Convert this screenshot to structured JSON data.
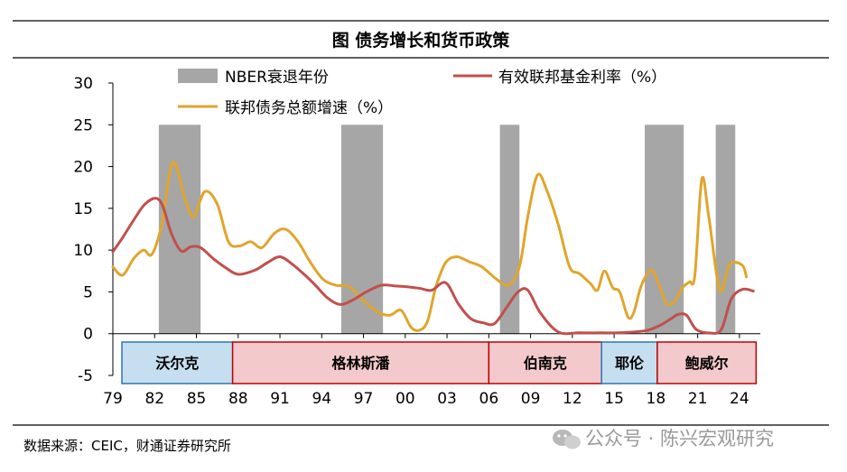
{
  "title": "图  债务增长和货币政策",
  "source": "数据来源：CEIC，财通证券研究所",
  "watermark": "公众号 · 陈兴宏观研究",
  "colors": {
    "recession": "#a6a6a6",
    "rate": "#c0504d",
    "debt": "#e0a52c",
    "chair_blue_fill": "#c5dff0",
    "chair_blue_stroke": "#2e75b6",
    "chair_red_fill": "#f3c9cc",
    "chair_red_stroke": "#c00000"
  },
  "chart_data": {
    "type": "line",
    "xlabel": "",
    "ylabel": "",
    "xlim": [
      1979,
      2025.5
    ],
    "ylim": [
      -5,
      30
    ],
    "yticks": [
      30,
      25,
      20,
      15,
      10,
      5,
      0,
      -5
    ],
    "xticks": [
      {
        "year": 1979,
        "label": "79"
      },
      {
        "year": 1982,
        "label": "82"
      },
      {
        "year": 1985,
        "label": "85"
      },
      {
        "year": 1988,
        "label": "88"
      },
      {
        "year": 1991,
        "label": "91"
      },
      {
        "year": 1994,
        "label": "94"
      },
      {
        "year": 1997,
        "label": "97"
      },
      {
        "year": 2000,
        "label": "00"
      },
      {
        "year": 2003,
        "label": "03"
      },
      {
        "year": 2006,
        "label": "06"
      },
      {
        "year": 2009,
        "label": "09"
      },
      {
        "year": 2012,
        "label": "12"
      },
      {
        "year": 2015,
        "label": "15"
      },
      {
        "year": 2018,
        "label": "18"
      },
      {
        "year": 2021,
        "label": "21"
      },
      {
        "year": 2024,
        "label": "24"
      }
    ],
    "legend": [
      "NBER衰退年份",
      "有效联邦基金利率（%）",
      "联邦债务总额增速（%）"
    ],
    "recessions": [
      {
        "start": 1982.3,
        "end": 1985.3
      },
      {
        "start": 1995.4,
        "end": 1998.4
      },
      {
        "start": 2006.8,
        "end": 2008.2
      },
      {
        "start": 2017.2,
        "end": 2020.0
      },
      {
        "start": 2022.3,
        "end": 2023.7
      }
    ],
    "series": [
      {
        "name": "有效联邦基金利率（%）",
        "key": "rate",
        "x": [
          1979,
          1979.7,
          1980.5,
          1981.3,
          1982.1,
          1982.6,
          1983.2,
          1983.9,
          1984.6,
          1985.3,
          1986.2,
          1987.1,
          1988,
          1989.2,
          1990.1,
          1991,
          1991.9,
          1992.8,
          1993.6,
          1994.4,
          1995.3,
          1996.2,
          1997.2,
          1998.3,
          1999.3,
          2000.2,
          2001.1,
          2001.9,
          2002.9,
          2003.8,
          2004.7,
          2005.6,
          2006.4,
          2007.3,
          2008.1,
          2008.8,
          2009.7,
          2011,
          2012.5,
          2014,
          2015.2,
          2016.4,
          2017.4,
          2018.3,
          2019.1,
          2019.6,
          2020.2,
          2020.9,
          2021.9,
          2022.7,
          2023.4,
          2024.2,
          2025
        ],
        "values": [
          9.8,
          11.5,
          13.6,
          15.5,
          16.2,
          15.2,
          12.0,
          9.9,
          10.4,
          10.3,
          9.0,
          7.9,
          7.1,
          7.6,
          8.5,
          9.2,
          8.3,
          7.0,
          5.7,
          4.3,
          3.5,
          4.0,
          5.0,
          5.8,
          5.7,
          5.6,
          5.4,
          5.2,
          6.1,
          3.6,
          1.8,
          1.3,
          1.2,
          3.2,
          5.0,
          5.2,
          2.5,
          0.2,
          0.1,
          0.1,
          0.1,
          0.2,
          0.4,
          1.0,
          1.8,
          2.3,
          2.2,
          0.5,
          0.08,
          0.5,
          4.1,
          5.3,
          5.1
        ]
      },
      {
        "name": "联邦债务总额增速（%）",
        "key": "debt",
        "x": [
          1979,
          1979.7,
          1980.5,
          1981.2,
          1981.8,
          1982.5,
          1983.3,
          1984.2,
          1984.8,
          1985.6,
          1986.5,
          1987.3,
          1988.1,
          1988.9,
          1989.7,
          1990.6,
          1991.4,
          1992.3,
          1993.2,
          1994.1,
          1995,
          1996,
          1997,
          1998,
          1998.9,
          1999.7,
          2000.4,
          2001,
          2001.6,
          2002.2,
          2002.9,
          2003.7,
          2004.6,
          2005.5,
          2006.5,
          2007.4,
          2008.2,
          2008.8,
          2009.5,
          2010.2,
          2011,
          2011.8,
          2012.5,
          2013.3,
          2013.8,
          2014.3,
          2014.9,
          2015.4,
          2016,
          2016.4,
          2016.9,
          2017.4,
          2017.8,
          2018.3,
          2018.8,
          2019.4,
          2019.9,
          2020.4,
          2020.8,
          2021.3,
          2021.8,
          2022.6,
          2023.3,
          2024.2,
          2024.5
        ],
        "values": [
          8.0,
          7.0,
          9.0,
          10.0,
          9.5,
          13.0,
          20.5,
          16.0,
          14.0,
          17.0,
          15.5,
          11.0,
          10.5,
          11.0,
          10.3,
          12.0,
          12.5,
          11.0,
          8.5,
          6.5,
          5.8,
          5.6,
          4.0,
          2.6,
          2.2,
          2.8,
          0.8,
          0.4,
          1.5,
          5.6,
          8.5,
          9.2,
          8.6,
          8.0,
          6.6,
          5.8,
          8.0,
          14.0,
          19.0,
          17.0,
          13.0,
          8.0,
          7.2,
          6.0,
          5.2,
          7.5,
          5.5,
          5.0,
          2.0,
          2.5,
          5.5,
          7.2,
          7.5,
          5.5,
          3.5,
          4.0,
          5.5,
          6.2,
          7.0,
          18.5,
          14.0,
          5.2,
          8.3,
          8.2,
          6.8
        ]
      }
    ]
  },
  "chairs": [
    {
      "name": "沃尔克",
      "start": 1979,
      "end": 1987.6,
      "tone": "blue"
    },
    {
      "name": "格林斯潘",
      "start": 1987.6,
      "end": 2006.0,
      "tone": "red"
    },
    {
      "name": "伯南克",
      "start": 2006.0,
      "end": 2014.1,
      "tone": "red"
    },
    {
      "name": "耶伦",
      "start": 2014.1,
      "end": 2018.1,
      "tone": "blue"
    },
    {
      "name": "鲍威尔",
      "start": 2018.1,
      "end": 2025.2,
      "tone": "red"
    }
  ]
}
